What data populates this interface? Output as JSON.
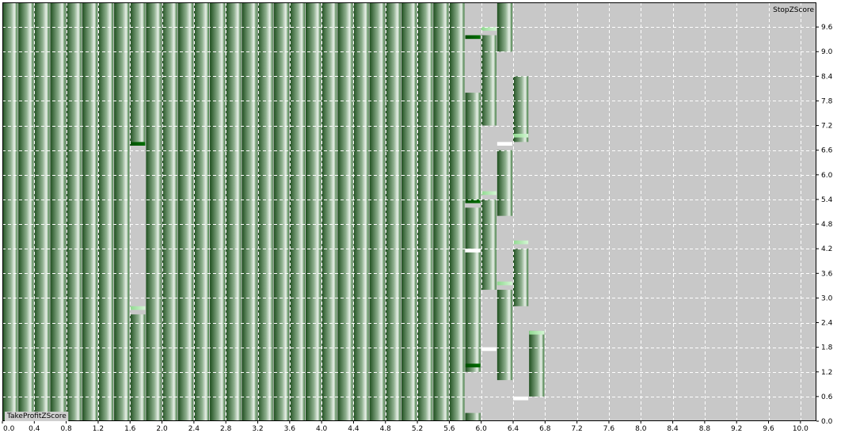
{
  "chart_data": {
    "type": "heatmap",
    "title": "",
    "xlabel": "TakeProfitZScore",
    "ylabel": "StopZScore",
    "xlim": [
      0.0,
      10.2
    ],
    "ylim": [
      0.0,
      10.2
    ],
    "x_ticks": [
      "0.0",
      "0.4",
      "0.8",
      "1.2",
      "1.6",
      "2.0",
      "2.4",
      "2.8",
      "3.2",
      "3.6",
      "4.0",
      "4.4",
      "4.8",
      "5.2",
      "5.6",
      "6.0",
      "6.4",
      "6.8",
      "7.2",
      "7.6",
      "8.0",
      "8.4",
      "8.8",
      "9.2",
      "9.6",
      "10.0"
    ],
    "y_ticks": [
      "0.0",
      "0.6",
      "1.2",
      "1.8",
      "2.4",
      "3.0",
      "3.6",
      "4.2",
      "4.8",
      "5.4",
      "6.0",
      "6.6",
      "7.2",
      "7.8",
      "8.4",
      "9.0",
      "9.6"
    ],
    "grid": true,
    "cell_width": 0.2,
    "columns": [
      {
        "x": 0.0,
        "segments": [
          [
            0.0,
            10.2
          ]
        ]
      },
      {
        "x": 0.2,
        "segments": [
          [
            0.0,
            10.2
          ]
        ]
      },
      {
        "x": 0.4,
        "segments": [
          [
            0.0,
            10.2
          ]
        ]
      },
      {
        "x": 0.6,
        "segments": [
          [
            0.0,
            10.2
          ]
        ]
      },
      {
        "x": 0.8,
        "segments": [
          [
            0.0,
            10.2
          ]
        ]
      },
      {
        "x": 1.0,
        "segments": [
          [
            0.0,
            10.2
          ]
        ]
      },
      {
        "x": 1.2,
        "segments": [
          [
            0.0,
            10.2
          ]
        ]
      },
      {
        "x": 1.4,
        "segments": [
          [
            0.0,
            10.2
          ]
        ]
      },
      {
        "x": 1.6,
        "segments": [
          [
            0.0,
            2.6
          ],
          [
            6.8,
            10.2
          ]
        ]
      },
      {
        "x": 1.8,
        "segments": [
          [
            0.0,
            10.2
          ]
        ]
      },
      {
        "x": 2.0,
        "segments": [
          [
            0.0,
            10.2
          ]
        ]
      },
      {
        "x": 2.2,
        "segments": [
          [
            0.0,
            10.2
          ]
        ]
      },
      {
        "x": 2.4,
        "segments": [
          [
            0.0,
            10.2
          ]
        ]
      },
      {
        "x": 2.6,
        "segments": [
          [
            0.0,
            10.2
          ]
        ]
      },
      {
        "x": 2.8,
        "segments": [
          [
            0.0,
            10.2
          ]
        ]
      },
      {
        "x": 3.0,
        "segments": [
          [
            0.0,
            10.2
          ]
        ]
      },
      {
        "x": 3.2,
        "segments": [
          [
            0.0,
            10.2
          ]
        ]
      },
      {
        "x": 3.4,
        "segments": [
          [
            0.0,
            10.2
          ]
        ]
      },
      {
        "x": 3.6,
        "segments": [
          [
            0.0,
            10.2
          ]
        ]
      },
      {
        "x": 3.8,
        "segments": [
          [
            0.0,
            10.2
          ]
        ]
      },
      {
        "x": 4.0,
        "segments": [
          [
            0.0,
            10.2
          ]
        ]
      },
      {
        "x": 4.2,
        "segments": [
          [
            0.0,
            10.2
          ]
        ]
      },
      {
        "x": 4.4,
        "segments": [
          [
            0.0,
            10.2
          ]
        ]
      },
      {
        "x": 4.6,
        "segments": [
          [
            0.0,
            10.2
          ]
        ]
      },
      {
        "x": 4.8,
        "segments": [
          [
            0.0,
            10.2
          ]
        ]
      },
      {
        "x": 5.0,
        "segments": [
          [
            0.0,
            10.2
          ]
        ]
      },
      {
        "x": 5.2,
        "segments": [
          [
            0.0,
            10.2
          ]
        ]
      },
      {
        "x": 5.4,
        "segments": [
          [
            0.0,
            10.2
          ]
        ]
      },
      {
        "x": 5.6,
        "segments": [
          [
            0.0,
            10.2
          ]
        ]
      },
      {
        "x": 5.8,
        "segments": [
          [
            0.0,
            0.2
          ],
          [
            1.2,
            5.2
          ],
          [
            5.4,
            8.0
          ]
        ]
      },
      {
        "x": 6.0,
        "segments": [
          [
            3.2,
            5.4
          ],
          [
            7.2,
            9.4
          ]
        ]
      },
      {
        "x": 6.2,
        "segments": [
          [
            1.0,
            3.2
          ],
          [
            5.0,
            6.6
          ],
          [
            9.0,
            10.2
          ]
        ]
      },
      {
        "x": 6.4,
        "segments": [
          [
            2.8,
            4.2
          ],
          [
            6.8,
            8.4
          ]
        ]
      },
      {
        "x": 6.6,
        "segments": [
          [
            0.6,
            2.2
          ]
        ]
      }
    ],
    "highlights": [
      {
        "x": 1.6,
        "y": 6.6,
        "shade": "dark"
      },
      {
        "x": 1.6,
        "y": 2.6,
        "shade": "light"
      },
      {
        "x": 5.8,
        "y": 9.2,
        "shade": "dark"
      },
      {
        "x": 5.8,
        "y": 5.2,
        "shade": "dark"
      },
      {
        "x": 5.8,
        "y": 4.0,
        "shade": "white"
      },
      {
        "x": 5.8,
        "y": 1.2,
        "shade": "dark"
      },
      {
        "x": 6.0,
        "y": 9.4,
        "shade": "light"
      },
      {
        "x": 6.0,
        "y": 5.4,
        "shade": "light"
      },
      {
        "x": 6.0,
        "y": 1.6,
        "shade": "white"
      },
      {
        "x": 6.2,
        "y": 6.6,
        "shade": "white"
      },
      {
        "x": 6.2,
        "y": 3.2,
        "shade": "light"
      },
      {
        "x": 6.4,
        "y": 6.8,
        "shade": "light"
      },
      {
        "x": 6.4,
        "y": 4.2,
        "shade": "light"
      },
      {
        "x": 6.4,
        "y": 0.4,
        "shade": "white"
      },
      {
        "x": 6.6,
        "y": 2.0,
        "shade": "light"
      }
    ],
    "colors": {
      "background": "#c8c8c8",
      "grid": "#ffffff",
      "cell_dark": "#1e5a1e",
      "cell_light": "#e6efe6",
      "highlight_dark": "#006400",
      "highlight_light": "#b8f0b8",
      "highlight_white": "#ffffff"
    }
  }
}
